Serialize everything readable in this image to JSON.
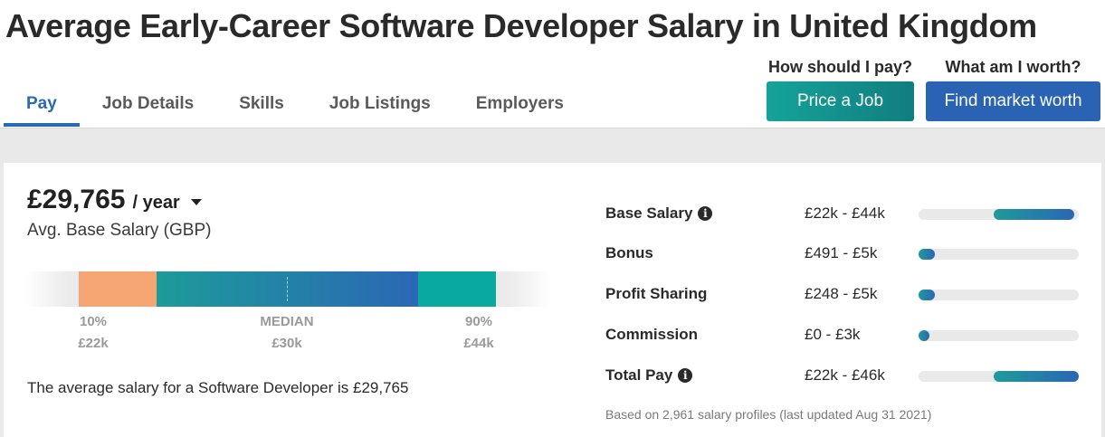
{
  "page": {
    "title": "Average Early-Career Software Developer Salary in United Kingdom"
  },
  "tabs": [
    {
      "label": "Pay",
      "active": true
    },
    {
      "label": "Job Details",
      "active": false
    },
    {
      "label": "Skills",
      "active": false
    },
    {
      "label": "Job Listings",
      "active": false
    },
    {
      "label": "Employers",
      "active": false
    }
  ],
  "cta": {
    "price_question": "How should I pay?",
    "price_button": "Price a Job",
    "worth_question": "What am I worth?",
    "worth_button": "Find market worth"
  },
  "salary": {
    "amount": "£29,765",
    "unit": "/ year",
    "subtitle": "Avg. Base Salary (GBP)",
    "percentiles": {
      "p10_label": "10%",
      "p10_value": "£22k",
      "median_label": "MEDIAN",
      "median_value": "£30k",
      "p90_label": "90%",
      "p90_value": "£44k"
    },
    "summary": "The average salary for a Software Developer is £29,765"
  },
  "compensation": [
    {
      "label": "Base Salary",
      "has_info": true,
      "range": "£22k - £44k",
      "start": 0.47,
      "end": 0.97
    },
    {
      "label": "Bonus",
      "has_info": false,
      "range": "£491 - £5k",
      "start": 0.0,
      "end": 0.1
    },
    {
      "label": "Profit Sharing",
      "has_info": false,
      "range": "£248 - £5k",
      "start": 0.0,
      "end": 0.1
    },
    {
      "label": "Commission",
      "has_info": false,
      "range": "£0 - £3k",
      "start": 0.0,
      "end": 0.06
    },
    {
      "label": "Total Pay",
      "has_info": true,
      "range": "£22k - £46k",
      "start": 0.47,
      "end": 1.0
    }
  ],
  "footnote": "Based on 2,961 salary profiles (last updated Aug 31 2021)",
  "colors": {
    "accent_blue": "#2a6ab5",
    "teal_button": "#15a39a",
    "blue_button": "#2a63b3",
    "low_segment": "#f6a672",
    "high_segment": "#0aa9a0"
  }
}
